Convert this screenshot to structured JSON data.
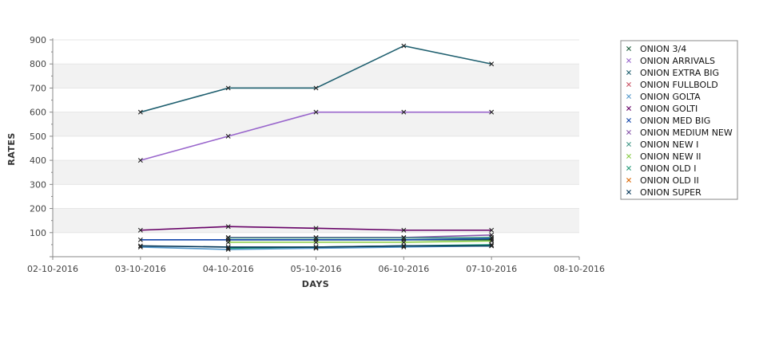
{
  "chart_data": {
    "type": "line",
    "title": "",
    "xlabel": "DAYS",
    "ylabel": "RATES",
    "x_ticks": [
      "02-10-2016",
      "03-10-2016",
      "04-10-2016",
      "05-10-2016",
      "06-10-2016",
      "07-10-2016",
      "08-10-2016"
    ],
    "x": [
      "03-10-2016",
      "04-10-2016",
      "05-10-2016",
      "06-10-2016",
      "07-10-2016"
    ],
    "xlim": [
      "02-10-2016",
      "08-10-2016"
    ],
    "ylim": [
      0,
      900
    ],
    "y_ticks": [
      100,
      200,
      300,
      400,
      500,
      600,
      700,
      800,
      900
    ],
    "grid": "horizontal alternating bands",
    "legend_position": "right",
    "series": [
      {
        "name": "ONION 3/4",
        "color": "#1a5c3a",
        "values": [
          null,
          70,
          70,
          70,
          70
        ]
      },
      {
        "name": "ONION ARRIVALS",
        "color": "#9966cc",
        "values": [
          400,
          500,
          600,
          600,
          600
        ]
      },
      {
        "name": "ONION EXTRA BIG",
        "color": "#1f5f6f",
        "values": [
          600,
          700,
          700,
          875,
          800
        ]
      },
      {
        "name": "ONION FULLBOLD",
        "color": "#cc5566",
        "values": [
          null,
          null,
          null,
          null,
          null
        ]
      },
      {
        "name": "ONION GOLTA",
        "color": "#5599cc",
        "values": [
          40,
          30,
          35,
          40,
          45
        ]
      },
      {
        "name": "ONION GOLTI",
        "color": "#660066",
        "values": [
          110,
          125,
          118,
          110,
          110
        ]
      },
      {
        "name": "ONION MED BIG",
        "color": "#1144aa",
        "values": [
          70,
          70,
          70,
          70,
          75
        ]
      },
      {
        "name": "ONION MEDIUM NEW",
        "color": "#8855aa",
        "values": [
          null,
          80,
          80,
          80,
          90
        ]
      },
      {
        "name": "ONION NEW I",
        "color": "#449988",
        "values": [
          null,
          78,
          78,
          78,
          80
        ]
      },
      {
        "name": "ONION NEW II",
        "color": "#88cc44",
        "values": [
          null,
          60,
          60,
          60,
          65
        ]
      },
      {
        "name": "ONION OLD I",
        "color": "#229977",
        "values": [
          null,
          35,
          40,
          45,
          50
        ]
      },
      {
        "name": "ONION OLD II",
        "color": "#dd6600",
        "values": [
          null,
          null,
          null,
          null,
          null
        ]
      },
      {
        "name": "ONION SUPER",
        "color": "#003355",
        "values": [
          45,
          40,
          40,
          45,
          45
        ]
      }
    ]
  }
}
